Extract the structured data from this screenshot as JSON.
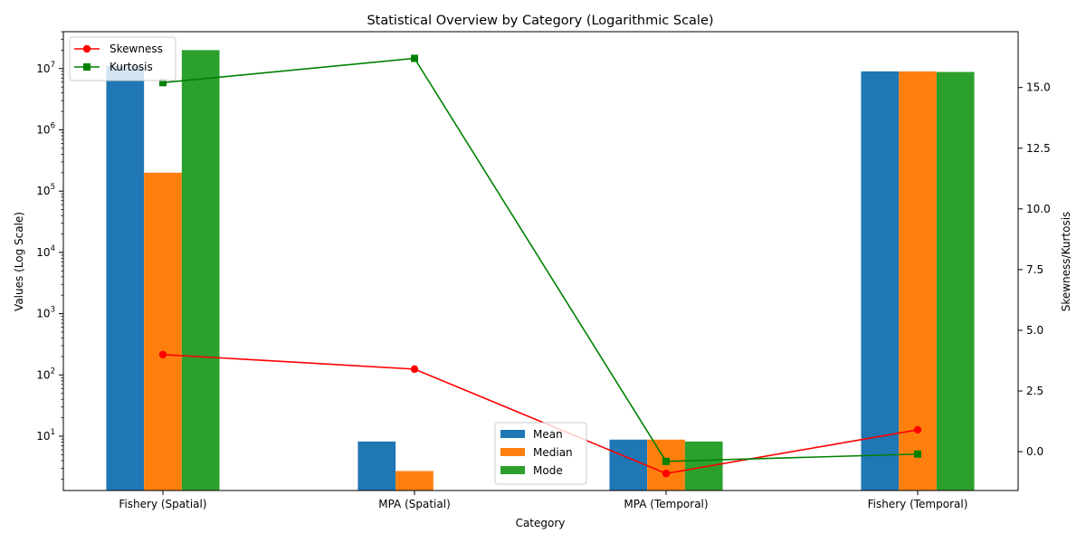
{
  "chart_data": {
    "type": "bar",
    "title": "Statistical Overview by Category (Logarithmic Scale)",
    "xlabel": "Category",
    "ylabel": "Values (Log Scale)",
    "y2label": "Skewness/Kurtosis",
    "y_scale": "log",
    "ylim": [
      1.3,
      40000000
    ],
    "y2lim": [
      -1.6,
      17.3
    ],
    "categories": [
      "Fishery (Spatial)",
      "MPA (Spatial)",
      "MPA (Temporal)",
      "Fishery (Temporal)"
    ],
    "y_ticks": [
      {
        "value": 10,
        "label": "10",
        "exp": "1"
      },
      {
        "value": 100,
        "label": "10",
        "exp": "2"
      },
      {
        "value": 1000,
        "label": "10",
        "exp": "3"
      },
      {
        "value": 10000,
        "label": "10",
        "exp": "4"
      },
      {
        "value": 100000,
        "label": "10",
        "exp": "5"
      },
      {
        "value": 1000000,
        "label": "10",
        "exp": "6"
      },
      {
        "value": 10000000,
        "label": "10",
        "exp": "7"
      }
    ],
    "y2_ticks": [
      "0.0",
      "2.5",
      "5.0",
      "7.5",
      "10.0",
      "12.5",
      "15.0"
    ],
    "bar_series": [
      {
        "name": "Mean",
        "color": "#1f77b4",
        "values": [
          11000000,
          8.2,
          8.8,
          9000000
        ]
      },
      {
        "name": "Median",
        "color": "#ff7f0e",
        "values": [
          200000,
          2.7,
          8.8,
          9000000
        ]
      },
      {
        "name": "Mode",
        "color": "#2ca02c",
        "values": [
          20000000,
          null,
          8.2,
          8800000
        ]
      }
    ],
    "line_series": [
      {
        "name": "Skewness",
        "color": "#ff0000",
        "marker": "circle",
        "values": [
          4.0,
          3.4,
          -0.9,
          0.9
        ]
      },
      {
        "name": "Kurtosis",
        "color": "#008000",
        "marker": "square",
        "values": [
          15.2,
          16.2,
          -0.4,
          -0.1
        ]
      }
    ],
    "bar_legend_position": "lower-center",
    "line_legend_position": "upper-left",
    "grid": false
  }
}
